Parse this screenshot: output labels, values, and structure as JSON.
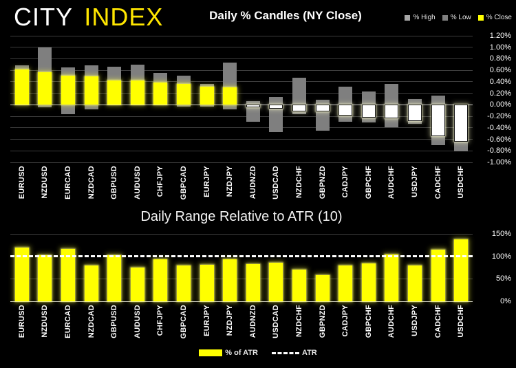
{
  "header": {
    "logo_part1": "CITY",
    "logo_part2": "INDEX",
    "title": "Daily % Candles (NY Close)",
    "legend": [
      {
        "label": "% High",
        "color": "#a6a6a6"
      },
      {
        "label": "% Low",
        "color": "#7f7f7f"
      },
      {
        "label": "% Close",
        "color": "#ffff00"
      }
    ]
  },
  "bottom": {
    "title": "Daily Range Relative to ATR (10)",
    "legend": [
      {
        "label": "% of ATR",
        "color": "#ffff00"
      },
      {
        "label": "ATR",
        "style": "dashed-white-line"
      }
    ]
  },
  "chart_data": [
    {
      "type": "bar",
      "subtype": "range-candle",
      "title": "Daily % Candles (NY Close)",
      "categories": [
        "EURUSD",
        "NZDUSD",
        "EURCAD",
        "NZDCAD",
        "GBPUSD",
        "AUDUSD",
        "CHFJPY",
        "GBPCAD",
        "EURJPY",
        "NZDJPY",
        "AUDNZD",
        "USDCAD",
        "NZDCHF",
        "GBPNZD",
        "CADJPY",
        "GBPCHF",
        "AUDCHF",
        "USDJPY",
        "CADCHF",
        "USDCHF"
      ],
      "series": [
        {
          "name": "% High",
          "values": [
            0.69,
            1.0,
            0.65,
            0.68,
            0.66,
            0.7,
            0.55,
            0.51,
            0.36,
            0.73,
            0.06,
            0.14,
            0.47,
            0.09,
            0.31,
            0.23,
            0.36,
            0.1,
            0.16,
            0.0
          ]
        },
        {
          "name": "% Low",
          "values": [
            0.0,
            -0.04,
            -0.16,
            -0.08,
            0.0,
            0.0,
            0.0,
            -0.03,
            -0.03,
            -0.08,
            -0.29,
            -0.48,
            -0.16,
            -0.45,
            -0.3,
            -0.31,
            -0.39,
            -0.33,
            -0.7,
            -0.81
          ]
        },
        {
          "name": "% Close",
          "values": [
            0.61,
            0.57,
            0.51,
            0.5,
            0.42,
            0.42,
            0.39,
            0.36,
            0.32,
            0.3,
            -0.04,
            -0.07,
            -0.11,
            -0.12,
            -0.19,
            -0.22,
            -0.23,
            -0.28,
            -0.55,
            -0.64
          ]
        }
      ],
      "ylim": [
        -1.0,
        1.2
      ],
      "yticks": [
        {
          "label": "1.20%",
          "value": 1.2
        },
        {
          "label": "1.00%",
          "value": 1.0
        },
        {
          "label": "0.80%",
          "value": 0.8
        },
        {
          "label": "0.60%",
          "value": 0.6
        },
        {
          "label": "0.40%",
          "value": 0.4
        },
        {
          "label": "0.20%",
          "value": 0.2
        },
        {
          "label": "0.00%",
          "value": 0.0
        },
        {
          "label": "-0.20%",
          "value": -0.2
        },
        {
          "label": "-0.40%",
          "value": -0.4
        },
        {
          "label": "-0.60%",
          "value": -0.6
        },
        {
          "label": "-0.80%",
          "value": -0.8
        },
        {
          "label": "-1.00%",
          "value": -1.0
        }
      ],
      "legend_position": "top-right",
      "grid": true,
      "colors": {
        "range": "#7f7f7f",
        "close_positive": "#ffff00",
        "close_negative": "#ffffff",
        "zero_line": "#cfcfcf"
      }
    },
    {
      "type": "bar",
      "title": "Daily Range Relative to ATR (10)",
      "categories": [
        "EURUSD",
        "NZDUSD",
        "EURCAD",
        "NZDCAD",
        "GBPUSD",
        "AUDUSD",
        "CHFJPY",
        "GBPCAD",
        "EURJPY",
        "NZDJPY",
        "AUDNZD",
        "USDCAD",
        "NZDCHF",
        "GBPNZD",
        "CADJPY",
        "GBPCHF",
        "AUDCHF",
        "USDJPY",
        "CADCHF",
        "USDCHF"
      ],
      "values": [
        119,
        103,
        117,
        80,
        103,
        75,
        94,
        79,
        81,
        93,
        82,
        86,
        70,
        58,
        79,
        84,
        104,
        79,
        115,
        137
      ],
      "ylabel": "% of ATR",
      "ylim": [
        0,
        150
      ],
      "yticks": [
        {
          "label": "150%",
          "value": 150
        },
        {
          "label": "100%",
          "value": 100
        },
        {
          "label": "50%",
          "value": 50
        },
        {
          "label": "0%",
          "value": 0
        }
      ],
      "reference_line": {
        "label": "ATR",
        "value": 100,
        "style": "dashed",
        "color": "#ffffff"
      },
      "legend_position": "bottom-center",
      "grid": true,
      "colors": {
        "bar": "#ffff00"
      }
    }
  ]
}
